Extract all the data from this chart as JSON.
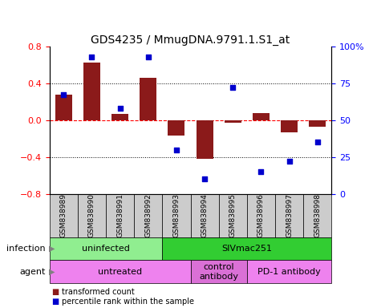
{
  "title": "GDS4235 / MmugDNA.9791.1.S1_at",
  "samples": [
    "GSM838989",
    "GSM838990",
    "GSM838991",
    "GSM838992",
    "GSM838993",
    "GSM838994",
    "GSM838995",
    "GSM838996",
    "GSM838997",
    "GSM838998"
  ],
  "bar_values": [
    0.28,
    0.62,
    0.07,
    0.46,
    -0.17,
    -0.42,
    -0.03,
    0.08,
    -0.13,
    -0.07
  ],
  "dot_values": [
    67,
    93,
    58,
    93,
    30,
    10,
    72,
    15,
    22,
    35
  ],
  "bar_color": "#8B1A1A",
  "dot_color": "#0000CD",
  "ylim": [
    -0.8,
    0.8
  ],
  "y2lim": [
    0,
    100
  ],
  "yticks": [
    -0.8,
    -0.4,
    0.0,
    0.4,
    0.8
  ],
  "y2ticks": [
    0,
    25,
    50,
    75,
    100
  ],
  "infection_groups": [
    {
      "label": "uninfected",
      "start": 0,
      "end": 4,
      "color": "#90EE90"
    },
    {
      "label": "SIVmac251",
      "start": 4,
      "end": 10,
      "color": "#32CD32"
    }
  ],
  "agent_groups": [
    {
      "label": "untreated",
      "start": 0,
      "end": 5,
      "color": "#EE82EE"
    },
    {
      "label": "control\nantibody",
      "start": 5,
      "end": 7,
      "color": "#DA70D6"
    },
    {
      "label": "PD-1 antibody",
      "start": 7,
      "end": 10,
      "color": "#EE82EE"
    }
  ],
  "legend_bar_label": "transformed count",
  "legend_dot_label": "percentile rank within the sample",
  "bar_color_leg": "#8B1A1A",
  "dot_color_leg": "#0000CD",
  "title_fontsize": 10
}
